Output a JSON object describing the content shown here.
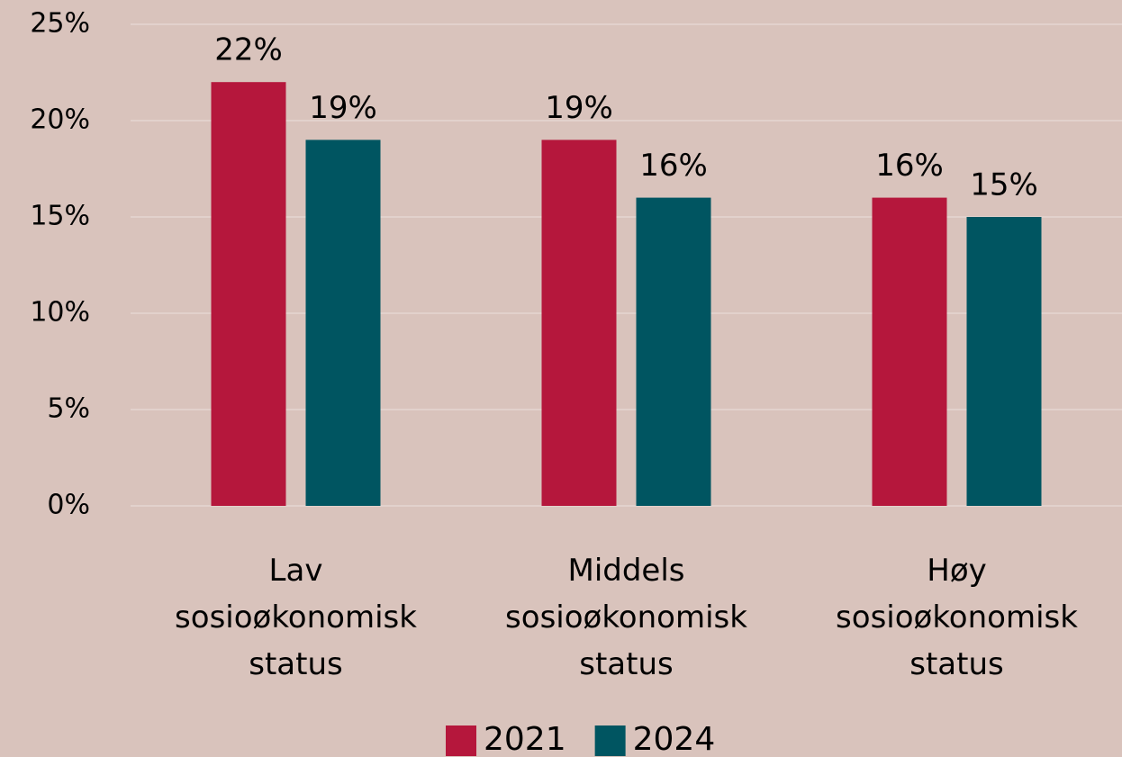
{
  "chart_data": {
    "type": "bar",
    "categories": [
      "Lav sosioøkonomisk status",
      "Middels sosioøkonomisk status",
      "Høy sosioøkonomisk status"
    ],
    "series": [
      {
        "name": "2021",
        "color": "#b5173c",
        "values": [
          22,
          19,
          16
        ],
        "value_labels": [
          "22%",
          "19%",
          "16%"
        ]
      },
      {
        "name": "2024",
        "color": "#005561",
        "values": [
          19,
          16,
          15
        ],
        "value_labels": [
          "19%",
          "16%",
          "15%"
        ]
      }
    ],
    "ylim": [
      0,
      25
    ],
    "yticks": [
      {
        "value": 0,
        "label": "0%"
      },
      {
        "value": 5,
        "label": "5%"
      },
      {
        "value": 10,
        "label": "10%"
      },
      {
        "value": 15,
        "label": "15%"
      },
      {
        "value": 20,
        "label": "20%"
      },
      {
        "value": 25,
        "label": "25%"
      }
    ],
    "grid": true,
    "legend": "bottom"
  }
}
